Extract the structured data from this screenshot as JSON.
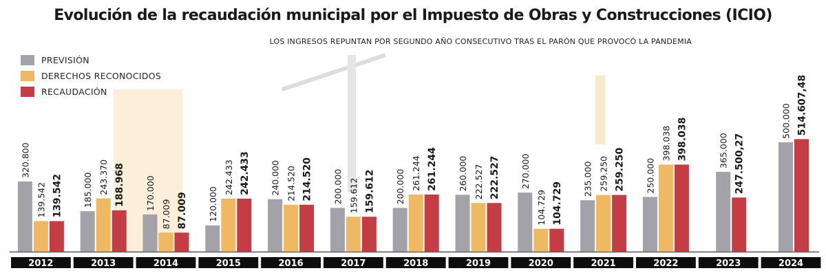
{
  "chart_data": {
    "type": "bar",
    "title": "Evolución de la recaudación municipal por el Impuesto de Obras y Construcciones (ICIO)",
    "subtitle": "LOS INGRESOS REPUNTAN POR SEGUNDO AÑO CONSECUTIVO TRAS EL PARÓN QUE PROVOCÓ LA PANDEMIA",
    "legend_position": "top-left",
    "grid": false,
    "categories": [
      "2012",
      "2013",
      "2014",
      "2015",
      "2016",
      "2017",
      "2018",
      "2019",
      "2020",
      "2021",
      "2022",
      "2023",
      "2024"
    ],
    "series": [
      {
        "name": "PREVISIÓN",
        "color": "#a3a2a8",
        "values": [
          320800,
          185000,
          170000,
          120000,
          240000,
          200000,
          200000,
          260000,
          270000,
          235000,
          250000,
          365000,
          500000
        ],
        "labels": [
          "320.800",
          "185.000",
          "170.000",
          "120.000",
          "240.000",
          "200.000",
          "200.000",
          "260.000",
          "270.000",
          "235.000",
          "250.000",
          "365.000",
          "500.000"
        ]
      },
      {
        "name": "DERECHOS RECONOCIDOS",
        "color": "#efb862",
        "values": [
          139542,
          243370,
          87009,
          242433,
          214520,
          159612,
          261244,
          222527,
          104729,
          259250,
          398038,
          null,
          null
        ],
        "labels": [
          "139.542",
          "243.370",
          "87.009",
          "242.433",
          "214.520",
          "159.612",
          "261.244",
          "222.527",
          "104.729",
          "259.250",
          "398.038",
          null,
          null
        ]
      },
      {
        "name": "RECAUDACIÓN",
        "color": "#c43c44",
        "values": [
          139542,
          188968,
          87009,
          242433,
          214520,
          159612,
          261244,
          222527,
          104729,
          259250,
          398038,
          247500.27,
          514607.48
        ],
        "labels": [
          "139.542",
          "188.968",
          "87.009",
          "242.433",
          "214.520",
          "159.612",
          "261.244",
          "222.527",
          "104.729",
          "259.250",
          "398.038",
          "247.500,27",
          "514.607,48"
        ]
      }
    ]
  }
}
